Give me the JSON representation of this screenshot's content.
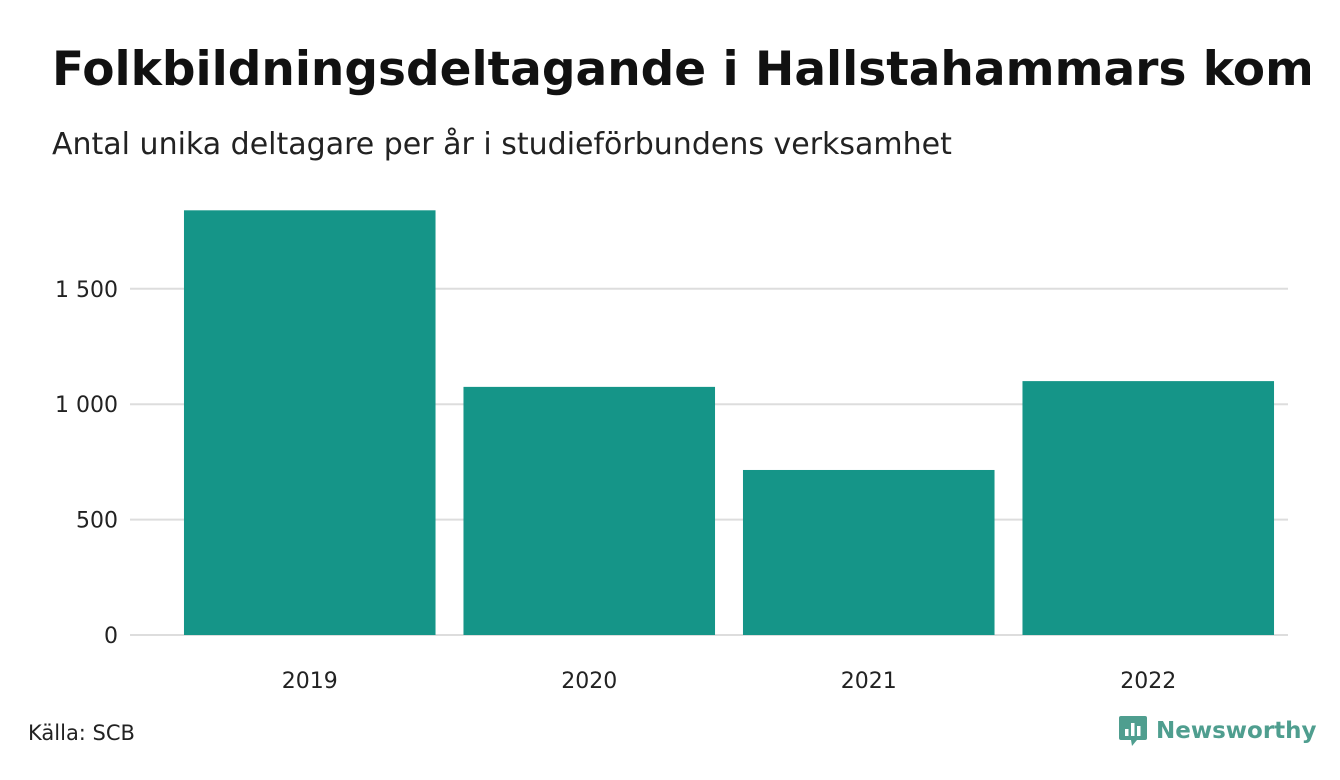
{
  "header": {
    "title": "Folkbildningsdeltagande i Hallstahammars kommun",
    "subtitle": "Antal unika deltagare per år i studieförbundens verksamhet"
  },
  "footer": {
    "source": "Källa: SCB",
    "brand": "Newsworthy",
    "brand_icon": "newsworthy-logo-icon"
  },
  "colors": {
    "bar": "#159588",
    "grid": "#dddddd",
    "brand": "#4f9e8f"
  },
  "chart_data": {
    "type": "bar",
    "title": "Folkbildningsdeltagande i Hallstahammars kommun",
    "subtitle": "Antal unika deltagare per år i studieförbundens verksamhet",
    "categories": [
      "2019",
      "2020",
      "2021",
      "2022"
    ],
    "values": [
      1840,
      1075,
      715,
      1100
    ],
    "ylim": [
      0,
      1850
    ],
    "yticks": [
      0,
      500,
      1000,
      1500
    ],
    "ytick_labels": [
      "0",
      "500",
      "1 000",
      "1 500"
    ],
    "grid": true,
    "legend": "none"
  }
}
